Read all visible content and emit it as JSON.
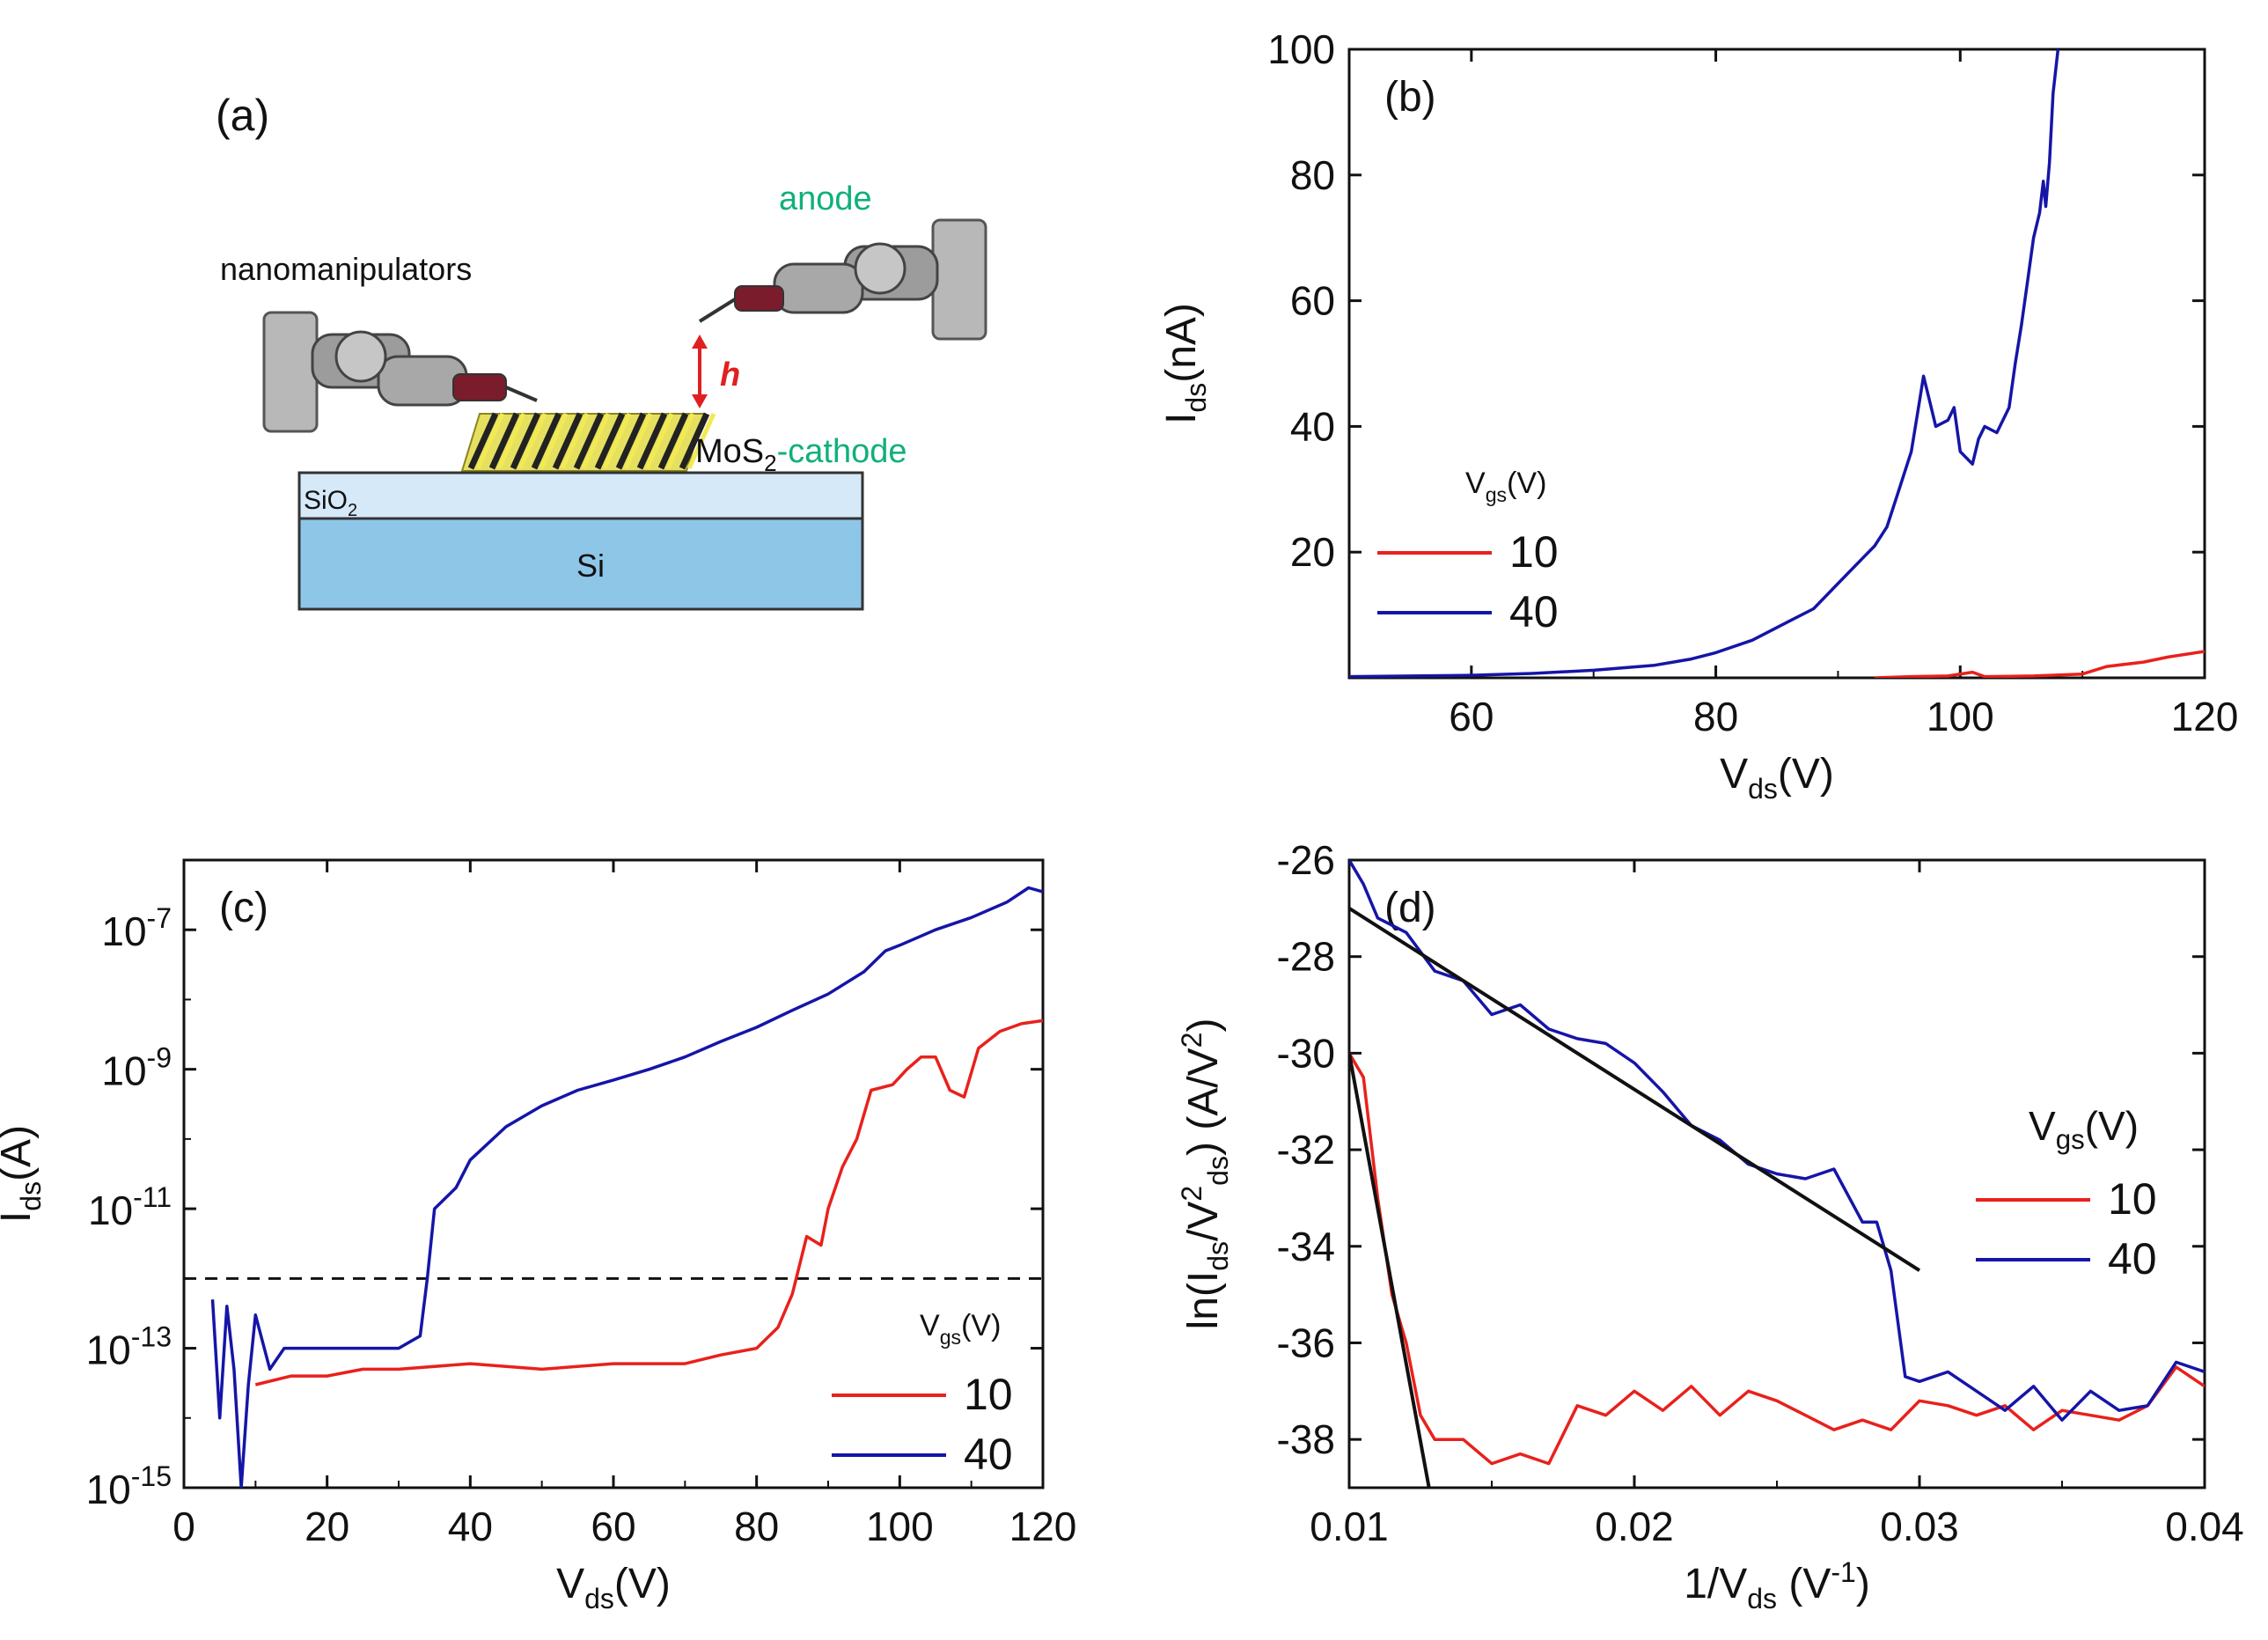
{
  "schematic": {
    "label": "(a)",
    "manipulator_label": "nanomanipulators",
    "anode_label": "anode",
    "h_label": "h",
    "mos2_prefix": "MoS",
    "mos2_sub": "2",
    "mos2_suffix": "-cathode",
    "sio2_prefix": "SiO",
    "sio2_sub": "2",
    "si_label": "Si",
    "colors": {
      "electrode_text": "#10b07a",
      "h_arrow": "#e02020",
      "sio2": "#d6e9f8",
      "si": "#8ec6e8"
    }
  },
  "chart_data": [
    {
      "panel": "(b)",
      "type": "line",
      "x_axis": {
        "label_main": "V",
        "label_sub": "ds",
        "label_tail": "(V)",
        "range": [
          50,
          120
        ],
        "ticks": [
          60,
          80,
          100,
          120
        ]
      },
      "y_axis": {
        "label_main": "I",
        "label_sub": "ds",
        "label_tail": "(nA)",
        "range": [
          0,
          100
        ],
        "ticks": [
          20,
          40,
          60,
          80,
          100
        ]
      },
      "legend": {
        "title_main": "V",
        "title_sub": "gs",
        "title_tail": "(V)",
        "position": "center-left"
      },
      "series": [
        {
          "name": "10",
          "color": "#e8211c",
          "points": [
            [
              93,
              0
            ],
            [
              96,
              0.2
            ],
            [
              99,
              0.3
            ],
            [
              101,
              0.9
            ],
            [
              102,
              0.2
            ],
            [
              106,
              0.3
            ],
            [
              110,
              0.6
            ],
            [
              112,
              1.8
            ],
            [
              115,
              2.5
            ],
            [
              117,
              3.3
            ],
            [
              120,
              4.2
            ]
          ]
        },
        {
          "name": "40",
          "color": "#1515a8",
          "points": [
            [
              50,
              0.2
            ],
            [
              60,
              0.4
            ],
            [
              65,
              0.7
            ],
            [
              70,
              1.2
            ],
            [
              75,
              2
            ],
            [
              78,
              3
            ],
            [
              80,
              4
            ],
            [
              83,
              6
            ],
            [
              86,
              9
            ],
            [
              88,
              11
            ],
            [
              90,
              15
            ],
            [
              92,
              19
            ],
            [
              93,
              21
            ],
            [
              94,
              24
            ],
            [
              95,
              30
            ],
            [
              96,
              36
            ],
            [
              96.5,
              42
            ],
            [
              97,
              48
            ],
            [
              97.5,
              44
            ],
            [
              98,
              40
            ],
            [
              99,
              41
            ],
            [
              99.5,
              43
            ],
            [
              100,
              36
            ],
            [
              101,
              34
            ],
            [
              101.5,
              38
            ],
            [
              102,
              40
            ],
            [
              103,
              39
            ],
            [
              104,
              43
            ],
            [
              104.5,
              50
            ],
            [
              105,
              56
            ],
            [
              105.5,
              63
            ],
            [
              106,
              70
            ],
            [
              106.5,
              74
            ],
            [
              106.8,
              79
            ],
            [
              107,
              75
            ],
            [
              107.3,
              82
            ],
            [
              107.6,
              93
            ],
            [
              108,
              100
            ]
          ]
        }
      ]
    },
    {
      "panel": "(c)",
      "type": "line",
      "x_axis": {
        "label_main": "V",
        "label_sub": "ds",
        "label_tail": "(V)",
        "range": [
          0,
          120
        ],
        "ticks": [
          0,
          20,
          40,
          60,
          80,
          100,
          120
        ]
      },
      "y_axis": {
        "label_main": "I",
        "label_sub": "ds",
        "label_tail": "(A)",
        "scale": "log",
        "range": [
          1e-15,
          1e-06
        ],
        "ticks": [
          {
            "base": "10",
            "exp": "-15",
            "value": 1e-15
          },
          {
            "base": "10",
            "exp": "-13",
            "value": 1e-13
          },
          {
            "base": "10",
            "exp": "-11",
            "value": 1e-11
          },
          {
            "base": "10",
            "exp": "-9",
            "value": 1e-09
          },
          {
            "base": "10",
            "exp": "-7",
            "value": 1e-07
          }
        ]
      },
      "reference_line": {
        "y": 1e-12,
        "style": "dashed"
      },
      "legend": {
        "title_main": "V",
        "title_sub": "gs",
        "title_tail": "(V)",
        "position": "bottom-right"
      },
      "series": [
        {
          "name": "10",
          "color": "#e8211c",
          "points": [
            [
              10,
              3e-14
            ],
            [
              15,
              4e-14
            ],
            [
              20,
              4e-14
            ],
            [
              25,
              5e-14
            ],
            [
              30,
              5e-14
            ],
            [
              40,
              6e-14
            ],
            [
              50,
              5e-14
            ],
            [
              60,
              6e-14
            ],
            [
              70,
              6e-14
            ],
            [
              75,
              8e-14
            ],
            [
              80,
              1e-13
            ],
            [
              83,
              2e-13
            ],
            [
              85,
              6e-13
            ],
            [
              87,
              4e-12
            ],
            [
              89,
              3e-12
            ],
            [
              90,
              1e-11
            ],
            [
              92,
              4e-11
            ],
            [
              94,
              1e-10
            ],
            [
              96,
              5e-10
            ],
            [
              99,
              6e-10
            ],
            [
              101,
              1e-09
            ],
            [
              103,
              1.5e-09
            ],
            [
              105,
              1.5e-09
            ],
            [
              107,
              5e-10
            ],
            [
              109,
              4e-10
            ],
            [
              111,
              2e-09
            ],
            [
              114,
              3.5e-09
            ],
            [
              117,
              4.5e-09
            ],
            [
              120,
              5e-09
            ]
          ]
        },
        {
          "name": "40",
          "color": "#1515a8",
          "points": [
            [
              4,
              5e-13
            ],
            [
              5,
              1e-14
            ],
            [
              6,
              4e-13
            ],
            [
              7,
              5e-14
            ],
            [
              8,
              1e-15
            ],
            [
              9,
              3e-14
            ],
            [
              10,
              3e-13
            ],
            [
              12,
              5e-14
            ],
            [
              14,
              1e-13
            ],
            [
              20,
              1e-13
            ],
            [
              26,
              1e-13
            ],
            [
              30,
              1e-13
            ],
            [
              33,
              1.5e-13
            ],
            [
              34,
              1e-12
            ],
            [
              35,
              1e-11
            ],
            [
              38,
              2e-11
            ],
            [
              40,
              5e-11
            ],
            [
              45,
              1.5e-10
            ],
            [
              50,
              3e-10
            ],
            [
              55,
              5e-10
            ],
            [
              60,
              7e-10
            ],
            [
              65,
              1e-09
            ],
            [
              70,
              1.5e-09
            ],
            [
              75,
              2.5e-09
            ],
            [
              80,
              4e-09
            ],
            [
              85,
              7e-09
            ],
            [
              90,
              1.2e-08
            ],
            [
              95,
              2.5e-08
            ],
            [
              98,
              5e-08
            ],
            [
              100,
              6e-08
            ],
            [
              105,
              1e-07
            ],
            [
              110,
              1.5e-07
            ],
            [
              115,
              2.5e-07
            ],
            [
              118,
              4e-07
            ],
            [
              120,
              3.5e-07
            ]
          ]
        }
      ]
    },
    {
      "panel": "(d)",
      "type": "line",
      "x_axis": {
        "label_main": "1/V",
        "label_sub": "ds",
        "label_mid": " (V",
        "label_sup": "-1",
        "label_tail": ")",
        "range": [
          0.01,
          0.04
        ],
        "ticks": [
          0.01,
          0.02,
          0.03,
          0.04
        ]
      },
      "y_axis": {
        "label_main": "ln(I",
        "label_sub": "ds",
        "label_mid": "/V",
        "label_sup": "2",
        "label_sub2": "ds",
        "label_tail": ") (A/V",
        "label_sup2": "2",
        "label_end": ")",
        "range": [
          -39,
          -26
        ],
        "ticks": [
          -38,
          -36,
          -34,
          -32,
          -30,
          -28,
          -26
        ]
      },
      "legend": {
        "title_main": "V",
        "title_sub": "gs",
        "title_tail": "(V)",
        "position": "right"
      },
      "series": [
        {
          "name": "10",
          "color": "#e8211c",
          "points": [
            [
              0.01,
              -30
            ],
            [
              0.0105,
              -30.5
            ],
            [
              0.011,
              -33
            ],
            [
              0.0115,
              -35
            ],
            [
              0.012,
              -36
            ],
            [
              0.0125,
              -37.5
            ],
            [
              0.013,
              -38
            ],
            [
              0.014,
              -38
            ],
            [
              0.015,
              -38.5
            ],
            [
              0.016,
              -38.3
            ],
            [
              0.017,
              -38.5
            ],
            [
              0.018,
              -37.3
            ],
            [
              0.019,
              -37.5
            ],
            [
              0.02,
              -37
            ],
            [
              0.021,
              -37.4
            ],
            [
              0.022,
              -36.9
            ],
            [
              0.023,
              -37.5
            ],
            [
              0.024,
              -37
            ],
            [
              0.025,
              -37.2
            ],
            [
              0.026,
              -37.5
            ],
            [
              0.027,
              -37.8
            ],
            [
              0.028,
              -37.6
            ],
            [
              0.029,
              -37.8
            ],
            [
              0.03,
              -37.2
            ],
            [
              0.031,
              -37.3
            ],
            [
              0.032,
              -37.5
            ],
            [
              0.033,
              -37.3
            ],
            [
              0.034,
              -37.8
            ],
            [
              0.035,
              -37.4
            ],
            [
              0.036,
              -37.5
            ],
            [
              0.037,
              -37.6
            ],
            [
              0.038,
              -37.3
            ],
            [
              0.039,
              -36.5
            ],
            [
              0.04,
              -36.9
            ]
          ]
        },
        {
          "name": "40",
          "color": "#1515a8",
          "points": [
            [
              0.01,
              -26
            ],
            [
              0.0105,
              -26.5
            ],
            [
              0.011,
              -27.2
            ],
            [
              0.012,
              -27.5
            ],
            [
              0.013,
              -28.3
            ],
            [
              0.014,
              -28.5
            ],
            [
              0.015,
              -29.2
            ],
            [
              0.016,
              -29
            ],
            [
              0.017,
              -29.5
            ],
            [
              0.018,
              -29.7
            ],
            [
              0.019,
              -29.8
            ],
            [
              0.02,
              -30.2
            ],
            [
              0.021,
              -30.8
            ],
            [
              0.022,
              -31.5
            ],
            [
              0.023,
              -31.8
            ],
            [
              0.024,
              -32.3
            ],
            [
              0.025,
              -32.5
            ],
            [
              0.026,
              -32.6
            ],
            [
              0.027,
              -32.4
            ],
            [
              0.028,
              -33.5
            ],
            [
              0.0285,
              -33.5
            ],
            [
              0.029,
              -34.5
            ],
            [
              0.0295,
              -36.7
            ],
            [
              0.03,
              -36.8
            ],
            [
              0.031,
              -36.6
            ],
            [
              0.032,
              -37
            ],
            [
              0.033,
              -37.4
            ],
            [
              0.034,
              -36.9
            ],
            [
              0.035,
              -37.6
            ],
            [
              0.036,
              -37
            ],
            [
              0.037,
              -37.4
            ],
            [
              0.038,
              -37.3
            ],
            [
              0.039,
              -36.4
            ],
            [
              0.04,
              -36.6
            ]
          ]
        }
      ],
      "fit_lines": [
        {
          "color": "#111111",
          "points": [
            [
              0.01,
              -27
            ],
            [
              0.03,
              -34.5
            ]
          ]
        },
        {
          "color": "#111111",
          "points": [
            [
              0.01,
              -30
            ],
            [
              0.0128,
              -39
            ]
          ]
        }
      ]
    }
  ]
}
